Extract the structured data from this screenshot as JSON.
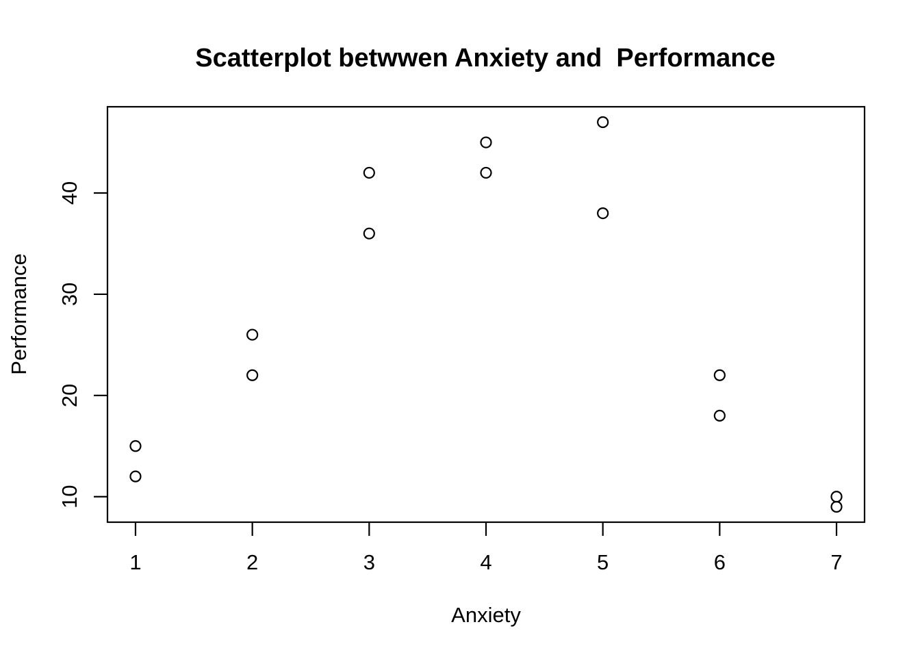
{
  "chart_data": {
    "type": "scatter",
    "title": "Scatterplot betwwen Anxiety and  Performance",
    "xlabel": "Anxiety",
    "ylabel": "Performance",
    "x_ticks": [
      1,
      2,
      3,
      4,
      5,
      6,
      7
    ],
    "y_ticks": [
      10,
      20,
      30,
      40
    ],
    "xlim": [
      0.76,
      7.24
    ],
    "ylim": [
      7.48,
      48.52
    ],
    "points": [
      [
        1,
        15
      ],
      [
        1,
        12
      ],
      [
        2,
        26
      ],
      [
        2,
        22
      ],
      [
        3,
        42
      ],
      [
        3,
        36
      ],
      [
        4,
        45
      ],
      [
        4,
        42
      ],
      [
        5,
        47
      ],
      [
        5,
        38
      ],
      [
        6,
        22
      ],
      [
        6,
        18
      ],
      [
        7,
        10
      ],
      [
        7,
        9
      ]
    ],
    "marker": "open-circle",
    "grid": "off",
    "legend": "none",
    "colors": {
      "foreground": "#000000",
      "background": "#ffffff"
    }
  }
}
